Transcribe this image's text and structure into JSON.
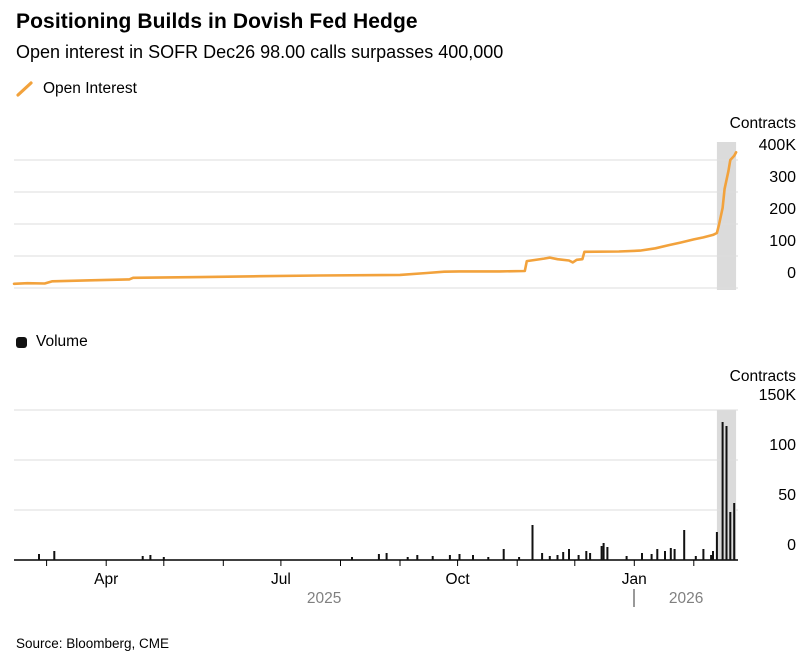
{
  "header": {
    "title": "Positioning Builds in Dovish Fed Hedge",
    "subtitle": "Open interest in SOFR Dec26 98.00 calls surpasses 400,000"
  },
  "legends": {
    "open_interest": "Open Interest",
    "volume": "Volume"
  },
  "source": "Source: Bloomberg, CME",
  "colors": {
    "line": "#F2A23C",
    "bar": "#111111",
    "gridline": "#DDDDDD",
    "axis": "#000000",
    "highlight_band": "#DBDBDB",
    "year_text": "#808080",
    "divider": "#999999"
  },
  "x_axis": {
    "month_ticks": [
      "2025-03-01",
      "2025-04-01",
      "2025-05-01",
      "2025-06-01",
      "2025-07-01",
      "2025-08-01",
      "2025-09-01",
      "2025-10-01",
      "2025-11-01",
      "2025-12-01",
      "2026-01-01",
      "2026-02-01"
    ],
    "month_labels": [
      {
        "label": "Apr",
        "date": "2025-04-01"
      },
      {
        "label": "Jul",
        "date": "2025-07-01"
      },
      {
        "label": "Oct",
        "date": "2025-10-01"
      },
      {
        "label": "Jan",
        "date": "2026-01-01"
      }
    ],
    "years": [
      {
        "label": "2025"
      },
      {
        "label": "2026"
      }
    ],
    "year_divider_date": "2026-01-01"
  },
  "chart_data": [
    {
      "type": "line",
      "title": "Open Interest",
      "axis_title": "Contracts",
      "unit": "thousands of contracts",
      "legend_position": "top-left",
      "grid": true,
      "x_domain": [
        "2025-02-12",
        "2026-02-24"
      ],
      "ylim": [
        0,
        400
      ],
      "yticks": [
        {
          "v": 400,
          "label": "400K"
        },
        {
          "v": 300,
          "label": "300"
        },
        {
          "v": 200,
          "label": "200"
        },
        {
          "v": 100,
          "label": "100"
        },
        {
          "v": 0,
          "label": "0"
        }
      ],
      "highlight_band": {
        "from": "2026-02-13",
        "to": "2026-02-23"
      },
      "points": [
        {
          "date": "2025-02-12",
          "v": 13
        },
        {
          "date": "2025-02-19",
          "v": 15
        },
        {
          "date": "2025-02-28",
          "v": 14
        },
        {
          "date": "2025-03-04",
          "v": 21
        },
        {
          "date": "2025-03-24",
          "v": 24
        },
        {
          "date": "2025-04-13",
          "v": 27
        },
        {
          "date": "2025-04-15",
          "v": 32
        },
        {
          "date": "2025-05-20",
          "v": 34
        },
        {
          "date": "2025-06-20",
          "v": 37
        },
        {
          "date": "2025-07-21",
          "v": 39
        },
        {
          "date": "2025-09-01",
          "v": 41
        },
        {
          "date": "2025-09-15",
          "v": 47
        },
        {
          "date": "2025-09-24",
          "v": 51
        },
        {
          "date": "2025-10-02",
          "v": 52
        },
        {
          "date": "2025-10-23",
          "v": 52
        },
        {
          "date": "2025-11-05",
          "v": 53
        },
        {
          "date": "2025-11-06",
          "v": 84
        },
        {
          "date": "2025-11-15",
          "v": 92
        },
        {
          "date": "2025-11-18",
          "v": 95
        },
        {
          "date": "2025-11-22",
          "v": 90
        },
        {
          "date": "2025-11-28",
          "v": 86
        },
        {
          "date": "2025-11-30",
          "v": 80
        },
        {
          "date": "2025-12-02",
          "v": 88
        },
        {
          "date": "2025-12-05",
          "v": 90
        },
        {
          "date": "2025-12-06",
          "v": 113
        },
        {
          "date": "2025-12-24",
          "v": 114
        },
        {
          "date": "2026-01-04",
          "v": 117
        },
        {
          "date": "2026-01-12",
          "v": 124
        },
        {
          "date": "2026-01-19",
          "v": 134
        },
        {
          "date": "2026-01-25",
          "v": 142
        },
        {
          "date": "2026-02-01",
          "v": 152
        },
        {
          "date": "2026-02-06",
          "v": 158
        },
        {
          "date": "2026-02-11",
          "v": 166
        },
        {
          "date": "2026-02-13",
          "v": 172
        },
        {
          "date": "2026-02-14",
          "v": 195
        },
        {
          "date": "2026-02-16",
          "v": 250
        },
        {
          "date": "2026-02-17",
          "v": 310
        },
        {
          "date": "2026-02-19",
          "v": 365
        },
        {
          "date": "2026-02-20",
          "v": 400
        },
        {
          "date": "2026-02-22",
          "v": 413
        },
        {
          "date": "2026-02-23",
          "v": 424
        }
      ]
    },
    {
      "type": "bar",
      "title": "Volume",
      "axis_title": "Contracts",
      "unit": "thousands of contracts",
      "legend_position": "top-left",
      "grid": true,
      "x_domain": [
        "2025-02-12",
        "2026-02-24"
      ],
      "ylim": [
        0,
        150
      ],
      "yticks": [
        {
          "v": 150,
          "label": "150K"
        },
        {
          "v": 100,
          "label": "100"
        },
        {
          "v": 50,
          "label": "50"
        },
        {
          "v": 0,
          "label": "0"
        }
      ],
      "highlight_band": {
        "from": "2026-02-13",
        "to": "2026-02-23"
      },
      "bars": [
        {
          "date": "2025-02-25",
          "v": 6
        },
        {
          "date": "2025-03-05",
          "v": 9
        },
        {
          "date": "2025-04-20",
          "v": 4
        },
        {
          "date": "2025-04-24",
          "v": 5
        },
        {
          "date": "2025-05-01",
          "v": 3
        },
        {
          "date": "2025-08-07",
          "v": 3
        },
        {
          "date": "2025-08-21",
          "v": 6
        },
        {
          "date": "2025-08-25",
          "v": 7
        },
        {
          "date": "2025-09-05",
          "v": 3
        },
        {
          "date": "2025-09-10",
          "v": 5
        },
        {
          "date": "2025-09-18",
          "v": 4
        },
        {
          "date": "2025-09-27",
          "v": 5
        },
        {
          "date": "2025-10-02",
          "v": 6
        },
        {
          "date": "2025-10-09",
          "v": 5
        },
        {
          "date": "2025-10-17",
          "v": 3
        },
        {
          "date": "2025-10-25",
          "v": 11
        },
        {
          "date": "2025-11-02",
          "v": 3
        },
        {
          "date": "2025-11-09",
          "v": 35
        },
        {
          "date": "2025-11-14",
          "v": 7
        },
        {
          "date": "2025-11-18",
          "v": 4
        },
        {
          "date": "2025-11-22",
          "v": 5
        },
        {
          "date": "2025-11-25",
          "v": 8
        },
        {
          "date": "2025-11-28",
          "v": 11
        },
        {
          "date": "2025-12-03",
          "v": 5
        },
        {
          "date": "2025-12-07",
          "v": 9
        },
        {
          "date": "2025-12-09",
          "v": 7
        },
        {
          "date": "2025-12-15",
          "v": 14
        },
        {
          "date": "2025-12-16",
          "v": 17
        },
        {
          "date": "2025-12-18",
          "v": 13
        },
        {
          "date": "2025-12-28",
          "v": 4
        },
        {
          "date": "2026-01-05",
          "v": 7
        },
        {
          "date": "2026-01-10",
          "v": 6
        },
        {
          "date": "2026-01-13",
          "v": 11
        },
        {
          "date": "2026-01-17",
          "v": 9
        },
        {
          "date": "2026-01-20",
          "v": 12
        },
        {
          "date": "2026-01-22",
          "v": 11
        },
        {
          "date": "2026-01-27",
          "v": 30
        },
        {
          "date": "2026-02-02",
          "v": 4
        },
        {
          "date": "2026-02-06",
          "v": 11
        },
        {
          "date": "2026-02-10",
          "v": 5
        },
        {
          "date": "2026-02-11",
          "v": 9
        },
        {
          "date": "2026-02-13",
          "v": 28
        },
        {
          "date": "2026-02-16",
          "v": 138
        },
        {
          "date": "2026-02-18",
          "v": 134
        },
        {
          "date": "2026-02-20",
          "v": 48
        },
        {
          "date": "2026-02-22",
          "v": 57
        }
      ]
    }
  ]
}
